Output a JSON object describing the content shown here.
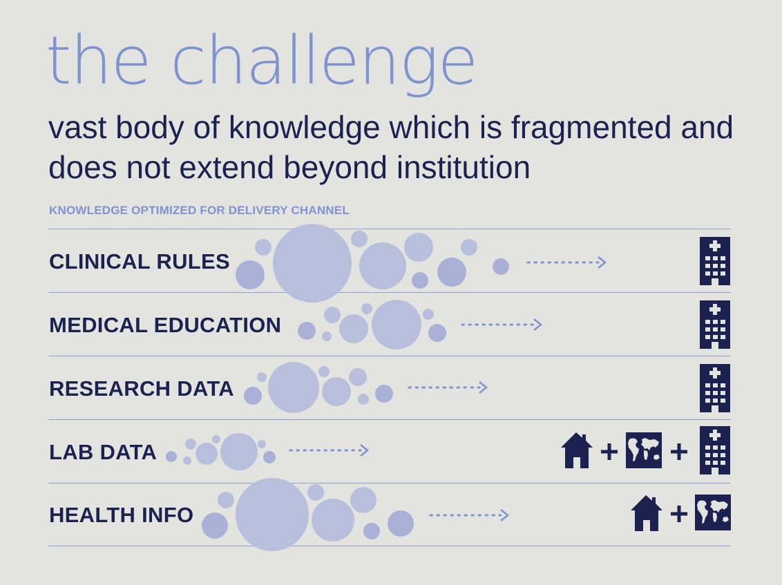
{
  "title": "the challenge",
  "subtitle": "vast body of knowledge which is fragmented and does not extend beyond institution",
  "section_label": "KNOWLEDGE OPTIMIZED FOR  DELIVERY CHANNEL",
  "rows": [
    {
      "label": "CLINICAL RULES",
      "channels": [
        "hospital-icon"
      ]
    },
    {
      "label": "MEDICAL EDUCATION",
      "channels": [
        "hospital-icon"
      ]
    },
    {
      "label": "RESEARCH DATA",
      "channels": [
        "hospital-icon"
      ]
    },
    {
      "label": "LAB DATA",
      "channels": [
        "home-icon",
        "plus",
        "world-map-icon",
        "plus",
        "hospital-icon"
      ]
    },
    {
      "label": "HEALTH INFO",
      "channels": [
        "home-icon",
        "plus",
        "world-map-icon"
      ]
    }
  ],
  "colors": {
    "title": "#7f93cf",
    "text": "#1c2250",
    "bubbles": "#b8bfdc",
    "bubbles_dark": "#a9b1d6",
    "arrow": "#7f93cf",
    "icon": "#1c2250",
    "background": "#e3e3e0"
  }
}
